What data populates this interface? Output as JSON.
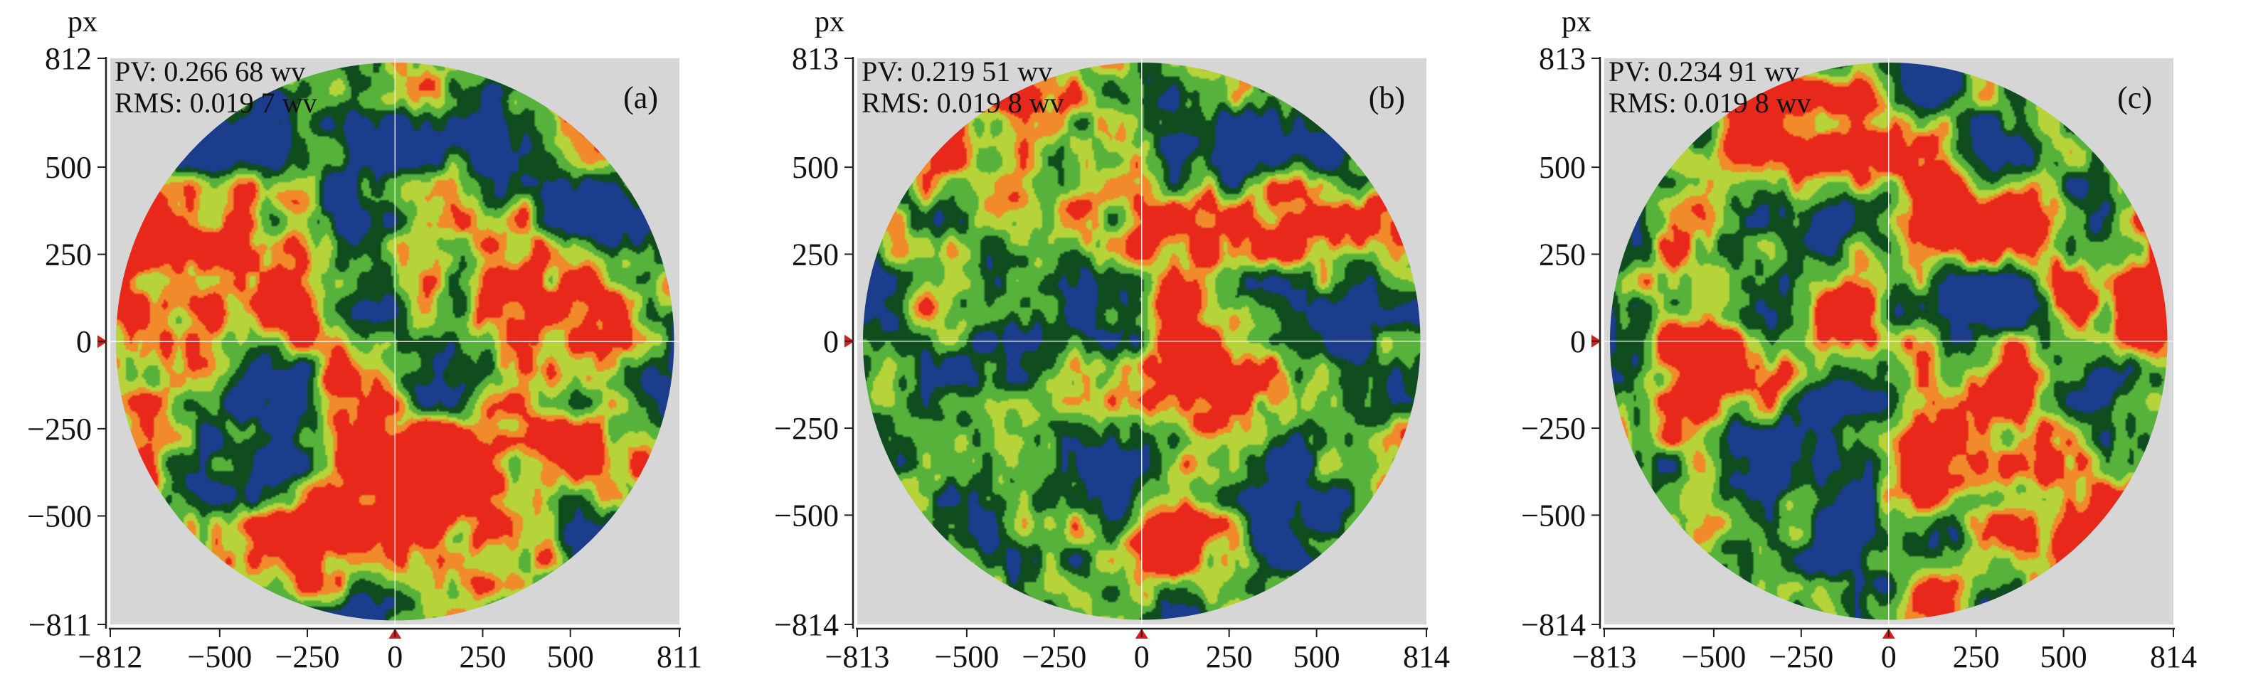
{
  "figure": {
    "background": "#ffffff",
    "plot_background": "#d6d6d6",
    "palette": {
      "blue": "#1c3c8c",
      "dark_green": "#0f4d1f",
      "green": "#56b23a",
      "yellow_green": "#b6d43a",
      "orange": "#f08a2a",
      "red": "#e7281b",
      "crosshair": "#ffffff",
      "marker": "#d81b1b"
    }
  },
  "chart_data": [
    {
      "type": "heatmap",
      "panel_label": "(a)",
      "unit_label": "px",
      "pv_text": "PV: 0.266 68 wv",
      "rms_text": "RMS: 0.019 7 wv",
      "xlim": [
        -812,
        811
      ],
      "ylim": [
        -811,
        812
      ],
      "x_ticks": [
        "−812",
        "−500",
        "−250",
        "0",
        "250",
        "500",
        "811"
      ],
      "x_tick_values": [
        -812,
        -500,
        -250,
        0,
        250,
        500,
        811
      ],
      "y_ticks": [
        "812",
        "500",
        "250",
        "0",
        "−250",
        "−500",
        "−811"
      ],
      "y_tick_values": [
        812,
        500,
        250,
        0,
        -250,
        -500,
        -811
      ],
      "aperture": "circular",
      "grid": false
    },
    {
      "type": "heatmap",
      "panel_label": "(b)",
      "unit_label": "px",
      "pv_text": "PV: 0.219 51 wv",
      "rms_text": "RMS: 0.019 8 wv",
      "xlim": [
        -813,
        814
      ],
      "ylim": [
        -814,
        813
      ],
      "x_ticks": [
        "−813",
        "−500",
        "−250",
        "0",
        "250",
        "500",
        "814"
      ],
      "x_tick_values": [
        -813,
        -500,
        -250,
        0,
        250,
        500,
        814
      ],
      "y_ticks": [
        "813",
        "500",
        "250",
        "0",
        "−250",
        "−500",
        "−814"
      ],
      "y_tick_values": [
        813,
        500,
        250,
        0,
        -250,
        -500,
        -814
      ],
      "aperture": "circular",
      "grid": false
    },
    {
      "type": "heatmap",
      "panel_label": "(c)",
      "unit_label": "px",
      "pv_text": "PV: 0.234 91 wv",
      "rms_text": "RMS: 0.019 8 wv",
      "xlim": [
        -813,
        814
      ],
      "ylim": [
        -814,
        813
      ],
      "x_ticks": [
        "−813",
        "−500",
        "−250",
        "0",
        "250",
        "500",
        "814"
      ],
      "x_tick_values": [
        -813,
        -500,
        -250,
        0,
        250,
        500,
        814
      ],
      "y_ticks": [
        "813",
        "500",
        "250",
        "0",
        "−250",
        "−500",
        "−814"
      ],
      "y_tick_values": [
        813,
        500,
        250,
        0,
        -250,
        -500,
        -814
      ],
      "aperture": "circular",
      "grid": false
    }
  ]
}
